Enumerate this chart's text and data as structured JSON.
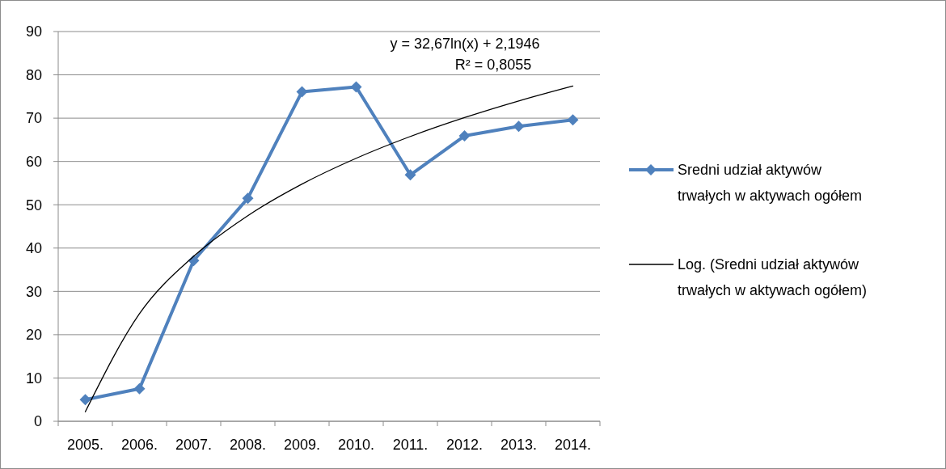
{
  "chart_data": {
    "type": "line",
    "categories": [
      "2005.",
      "2006.",
      "2007.",
      "2008.",
      "2009.",
      "2010.",
      "2011.",
      "2012.",
      "2013.",
      "2014."
    ],
    "series": [
      {
        "name": "Sredni udział aktywów trwałych w aktywach ogółem",
        "color": "#4f81bd",
        "values": [
          5.0,
          7.5,
          37.1,
          51.5,
          76.1,
          77.2,
          56.9,
          65.9,
          68.1,
          69.6
        ],
        "marker": "diamond"
      },
      {
        "name": "Log. (Sredni udział aktywów trwałych w aktywach ogółem)",
        "color": "#000000",
        "type": "line",
        "marker": "none",
        "x": [
          "2005.",
          "2006.",
          "2007.",
          "2008.",
          "2009.",
          "2010.",
          "2011.",
          "2012.",
          "2013.",
          "2014."
        ],
        "values": [
          2.19,
          24.84,
          38.09,
          47.48,
          54.78,
          60.73,
          65.77,
          70.13,
          73.98,
          77.42
        ]
      }
    ],
    "ylim": [
      0,
      90
    ],
    "yticks": [
      0,
      10,
      20,
      30,
      40,
      50,
      60,
      70,
      80,
      90
    ],
    "grid": "y",
    "legend": "right",
    "annotations": [
      "y = 32,67ln(x) + 2,1946",
      "R² = 0,8055"
    ]
  }
}
